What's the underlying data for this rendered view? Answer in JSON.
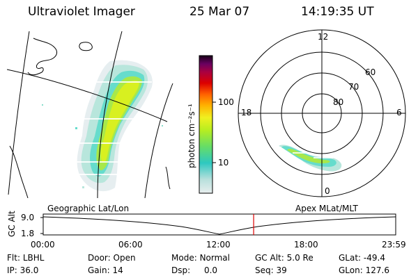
{
  "header": {
    "title": "Ultraviolet Imager",
    "date": "25 Mar 07",
    "time": "14:19:35 UT"
  },
  "colorbar": {
    "label": "photon cm⁻²s⁻¹",
    "ticks": [
      "100",
      "10"
    ]
  },
  "polar_plot": {
    "mlt_labels": [
      "12",
      "18",
      "6",
      "0"
    ],
    "lat_labels": [
      "60",
      "70",
      "80"
    ]
  },
  "timeline": {
    "left_label": "Geographic Lat/Lon",
    "right_label": "Apex MLat/MLT",
    "axis_title": "GC Alt",
    "y_ticks": [
      "9.0",
      "1.8"
    ],
    "x_ticks": [
      "00:00",
      "06:00",
      "12:00",
      "18:00",
      "23:59"
    ],
    "current_time_fraction": 0.597
  },
  "footer": {
    "row1": [
      {
        "label": "Flt:",
        "value": "LBHL"
      },
      {
        "label": "Door:",
        "value": "Open"
      },
      {
        "label": "Mode:",
        "value": "Normal"
      },
      {
        "label": "GC Alt:",
        "value": "5.0 Re"
      },
      {
        "label": "GLat:",
        "value": "-49.4"
      }
    ],
    "row2": [
      {
        "label": "IP:",
        "value": "36.0"
      },
      {
        "label": "Gain:",
        "value": "14"
      },
      {
        "label": "Dsp:",
        "value": "0.0"
      },
      {
        "label": "Seq:",
        "value": "39"
      },
      {
        "label": "GLon:",
        "value": "127.6"
      }
    ]
  },
  "colors": {
    "timeline_marker": "#dd0000"
  }
}
